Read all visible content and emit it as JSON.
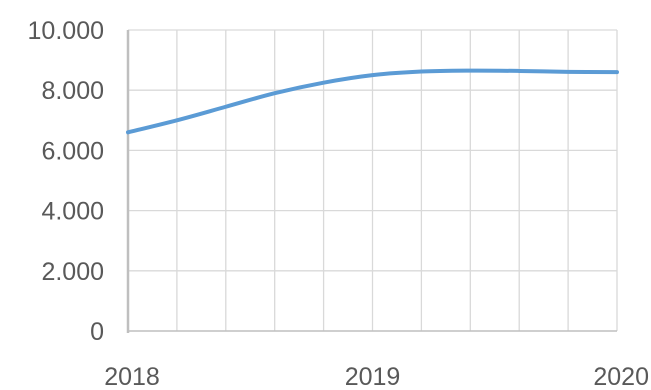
{
  "chart_data": {
    "type": "line",
    "title": "",
    "xlabel": "",
    "ylabel": "",
    "xlim": [
      2018,
      2020
    ],
    "ylim": [
      0,
      10000
    ],
    "y_ticks": [
      {
        "value": 0,
        "label": "0"
      },
      {
        "value": 2000,
        "label": "2.000"
      },
      {
        "value": 4000,
        "label": "4.000"
      },
      {
        "value": 6000,
        "label": "6.000"
      },
      {
        "value": 8000,
        "label": "8.000"
      },
      {
        "value": 10000,
        "label": "10.000"
      }
    ],
    "x_ticks": [
      {
        "value": 2018,
        "label": "2018"
      },
      {
        "value": 2019,
        "label": "2019"
      },
      {
        "value": 2020,
        "label": "2020"
      }
    ],
    "x_minor_step": 0.2,
    "grid": true,
    "legend": "none",
    "series": [
      {
        "color": "#5b9bd5",
        "x": [
          2018,
          2018.2,
          2018.4,
          2018.6,
          2018.8,
          2019,
          2019.2,
          2019.4,
          2019.6,
          2019.8,
          2020
        ],
        "values": [
          6600,
          7000,
          7450,
          7900,
          8250,
          8500,
          8620,
          8650,
          8640,
          8610,
          8600
        ]
      }
    ]
  }
}
